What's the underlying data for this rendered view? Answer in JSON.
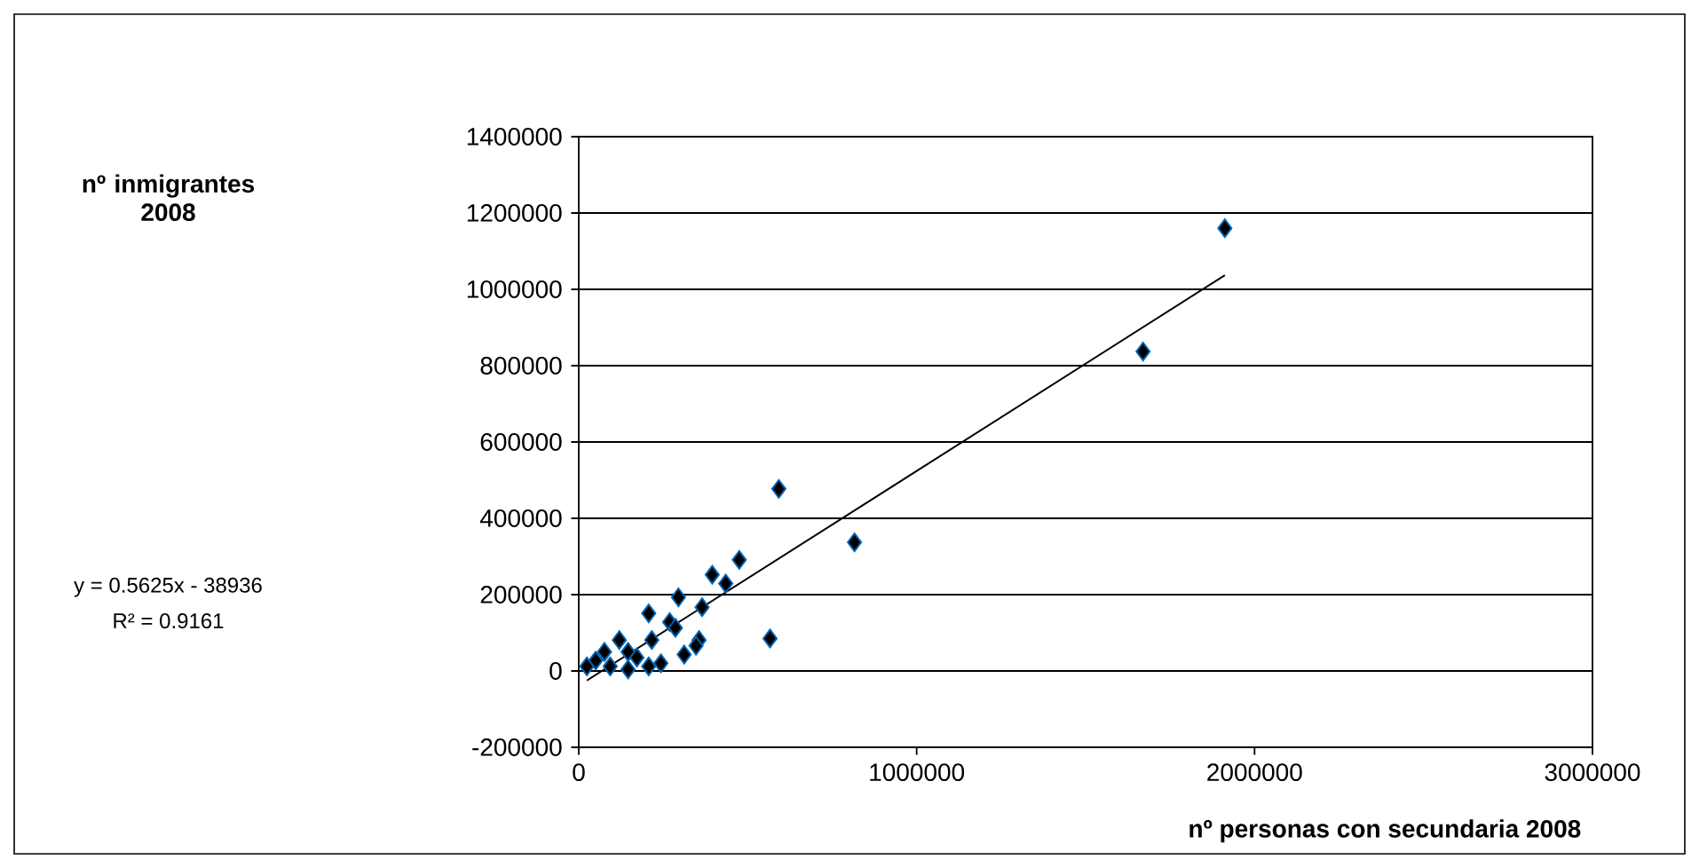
{
  "chart_data": {
    "type": "scatter",
    "xlabel": "nº personas con secundaria 2008",
    "annotations": [
      "nº inmigrantes 2008",
      "y = 0.5625x - 38936",
      "R² = 0.9161"
    ],
    "xlim": [
      0,
      3000000
    ],
    "xticks": [
      0,
      1000000,
      2000000,
      3000000
    ],
    "ylim": [
      -200000,
      1400000
    ],
    "yticks": [
      -200000,
      0,
      200000,
      400000,
      600000,
      800000,
      1000000,
      1200000,
      1400000
    ],
    "grid": "y",
    "series": [
      {
        "marker": "diamond",
        "color": "#000000",
        "x": [
          1912000,
          1670000,
          592000,
          816000,
          566000,
          475000,
          395000,
          435000,
          295000,
          365000,
          207000,
          269000,
          216000,
          286000,
          356000,
          347000,
          312000,
          146000,
          120000,
          172000,
          243000,
          207000,
          76000,
          50000,
          24000,
          93000,
          146000
        ],
        "values": [
          1160000,
          837000,
          477000,
          337000,
          85000,
          291000,
          252000,
          229000,
          193000,
          167000,
          151000,
          128000,
          81000,
          113000,
          81000,
          66000,
          43000,
          50000,
          81000,
          35000,
          20000,
          12000,
          50000,
          27000,
          12000,
          12000,
          4000
        ]
      },
      {
        "type": "line",
        "marker": "none",
        "line_style": "solid",
        "color": "#000000",
        "x": [
          24000,
          1912000
        ],
        "values": [
          -25000,
          1037000
        ]
      }
    ]
  }
}
